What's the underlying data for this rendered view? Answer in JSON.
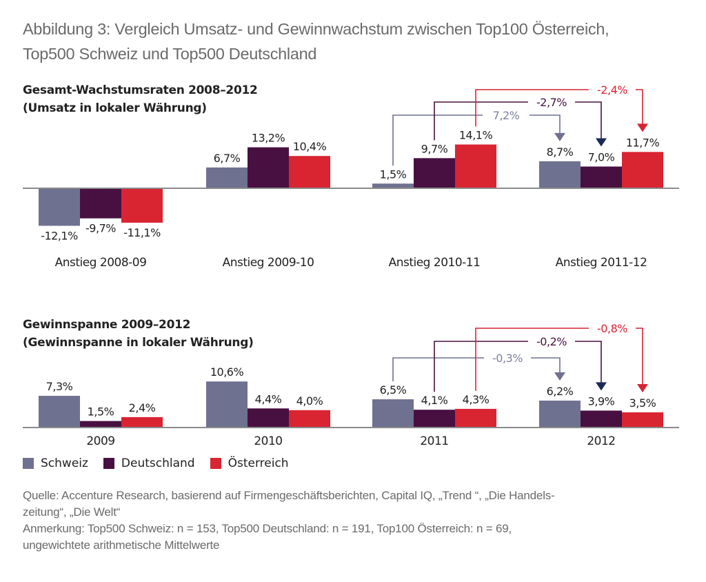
{
  "figure_title_line1": "Abbildung 3: Vergleich Umsatz- und Gewinnwachstum zwischen Top100 Österreich,",
  "figure_title_line2": "Top500 Schweiz und Top500 Deutschland",
  "colors": {
    "schweiz": "#6f7190",
    "deutschland": "#481040",
    "oesterreich": "#d92432",
    "axis": "#8a8a8a",
    "arrow_deutschland": "#1b2a55"
  },
  "legend": [
    {
      "label": "Schweiz",
      "color": "#6f7190"
    },
    {
      "label": "Deutschland",
      "color": "#481040"
    },
    {
      "label": "Österreich",
      "color": "#d92432"
    }
  ],
  "notes": {
    "source_line1": "Quelle: Accenture Research, basierend auf Firmengeschäftsberichten, Capital IQ, „Trend “, „Die Handels-",
    "source_line2": "zeitung“, „Die Welt“",
    "remark_line1": "Anmerkung: Top500 Schweiz: n = 153, Top500 Deutschland: n = 191, Top100 Österreich: n = 69,",
    "remark_line2": "ungewichtete arithmetische Mittelwerte"
  },
  "chart_data": [
    {
      "type": "bar",
      "title": "Gesamt-Wachstumsraten 2008–2012",
      "subtitle": "(Umsatz in lokaler Währung)",
      "categories": [
        "Anstieg 2008-09",
        "Anstieg 2009-10",
        "Anstieg 2010-11",
        "Anstieg 2011-12"
      ],
      "series": [
        {
          "name": "Schweiz",
          "values": [
            -12.1,
            6.7,
            1.5,
            8.7
          ],
          "labels": [
            "-12,1%",
            "6,7%",
            "1,5%",
            "8,7%"
          ]
        },
        {
          "name": "Deutschland",
          "values": [
            -9.7,
            13.2,
            9.7,
            7.0
          ],
          "labels": [
            "-9,7%",
            "13,2%",
            "9,7%",
            "7,0%"
          ]
        },
        {
          "name": "Österreich",
          "values": [
            -11.1,
            10.4,
            14.1,
            11.7
          ],
          "labels": [
            "-11,1%",
            "10,4%",
            "14,1%",
            "11,7%"
          ]
        }
      ],
      "annotations": [
        {
          "series": "Schweiz",
          "from": "Anstieg 2010-11",
          "to": "Anstieg 2011-12",
          "label": "7,2%"
        },
        {
          "series": "Deutschland",
          "from": "Anstieg 2010-11",
          "to": "Anstieg 2011-12",
          "label": "-2,7%"
        },
        {
          "series": "Österreich",
          "from": "Anstieg 2010-11",
          "to": "Anstieg 2011-12",
          "label": "-2,4%"
        }
      ],
      "xlabel": "",
      "ylabel": "",
      "grid": false,
      "legend": "bottom-left"
    },
    {
      "type": "bar",
      "title": "Gewinnspanne 2009–2012",
      "subtitle": "(Gewinnspanne in lokaler Währung)",
      "categories": [
        "2009",
        "2010",
        "2011",
        "2012"
      ],
      "series": [
        {
          "name": "Schweiz",
          "values": [
            7.3,
            10.6,
            6.5,
            6.2
          ],
          "labels": [
            "7,3%",
            "10,6%",
            "6,5%",
            "6,2%"
          ]
        },
        {
          "name": "Deutschland",
          "values": [
            1.5,
            4.4,
            4.1,
            3.9
          ],
          "labels": [
            "1,5%",
            "4,4%",
            "4,1%",
            "3,9%"
          ]
        },
        {
          "name": "Österreich",
          "values": [
            2.4,
            4.0,
            4.3,
            3.5
          ],
          "labels": [
            "2,4%",
            "4,0%",
            "4,3%",
            "3,5%"
          ]
        }
      ],
      "annotations": [
        {
          "series": "Schweiz",
          "from": "2011",
          "to": "2012",
          "label": "-0,3%"
        },
        {
          "series": "Deutschland",
          "from": "2011",
          "to": "2012",
          "label": "-0,2%"
        },
        {
          "series": "Österreich",
          "from": "2011",
          "to": "2012",
          "label": "-0,8%"
        }
      ],
      "xlabel": "",
      "ylabel": "",
      "grid": false,
      "legend": "bottom-left"
    }
  ]
}
